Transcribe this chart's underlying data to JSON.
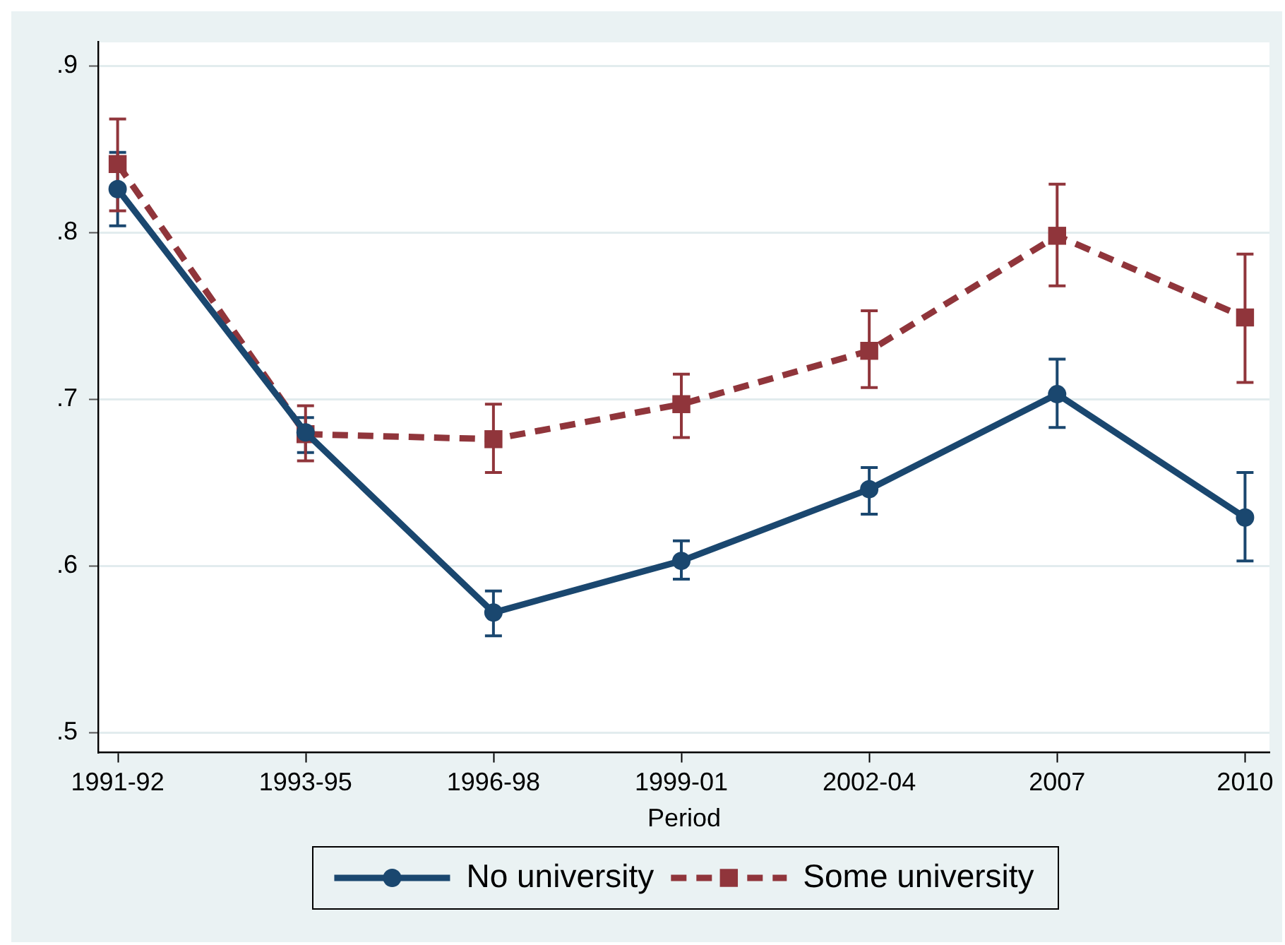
{
  "chart_data": {
    "type": "line",
    "categories": [
      "1991-92",
      "1993-95",
      "1996-98",
      "1999-01",
      "2002-04",
      "2007",
      "2010"
    ],
    "xlabel": "Period",
    "series": [
      {
        "name": "No university",
        "color": "#1a476f",
        "marker": "circle",
        "line_style": "solid",
        "values": [
          0.826,
          0.68,
          0.572,
          0.603,
          0.646,
          0.703,
          0.629
        ],
        "errors": [
          [
            0.804,
            0.848
          ],
          [
            0.668,
            0.689
          ],
          [
            0.558,
            0.585
          ],
          [
            0.592,
            0.615
          ],
          [
            0.631,
            0.659
          ],
          [
            0.683,
            0.724
          ],
          [
            0.603,
            0.656
          ]
        ]
      },
      {
        "name": "Some university",
        "color": "#90353b",
        "marker": "square",
        "line_style": "dashed",
        "values": [
          0.841,
          0.679,
          0.676,
          0.697,
          0.729,
          0.798,
          0.749
        ],
        "errors": [
          [
            0.813,
            0.868
          ],
          [
            0.663,
            0.696
          ],
          [
            0.656,
            0.697
          ],
          [
            0.677,
            0.715
          ],
          [
            0.707,
            0.753
          ],
          [
            0.768,
            0.829
          ],
          [
            0.71,
            0.787
          ]
        ]
      }
    ],
    "ylim": [
      0.488,
      0.914
    ],
    "yticks": [
      {
        "value": 0.5,
        "label": ".5"
      },
      {
        "value": 0.6,
        "label": ".6"
      },
      {
        "value": 0.7,
        "label": ".7"
      },
      {
        "value": 0.8,
        "label": ".8"
      },
      {
        "value": 0.9,
        "label": ".9"
      }
    ],
    "grid": "y",
    "legend": "bottom"
  }
}
